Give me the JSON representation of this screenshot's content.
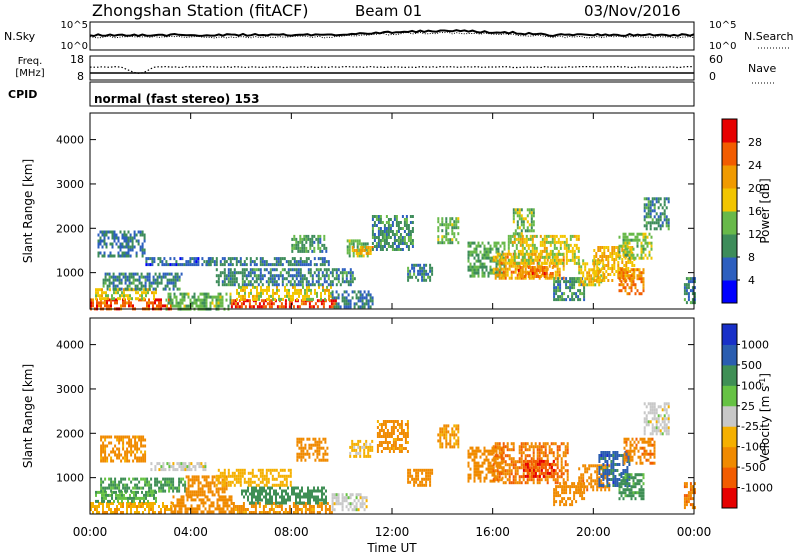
{
  "header": {
    "station": "Zhongshan Station (fitACF)",
    "beam": "Beam 01",
    "date": "03/Nov/2016"
  },
  "summary": {
    "nsky_label": "N.Sky",
    "nsky_ticks": [
      "10^5",
      "10^0"
    ],
    "nsearch_label": "N.Search",
    "nsearch_ticks": [
      "10^5",
      "10^0"
    ],
    "freq_label": [
      "Freq.",
      "[MHz]"
    ],
    "freq_ticks": [
      "18",
      "8"
    ],
    "nave_label": "Nave",
    "nave_ticks": [
      "60",
      "0"
    ],
    "cpid_label": "CPID",
    "cpid_text": "normal (fast stereo) 153"
  },
  "colors": {
    "power": [
      "#0000ff",
      "#2d5fbf",
      "#3d8c5a",
      "#68b94a",
      "#f2c500",
      "#f09a00",
      "#f25c00",
      "#e60000"
    ],
    "velocity": [
      "#e60000",
      "#f25c00",
      "#f08a00",
      "#f5b000",
      "#c8c8c8",
      "#66c244",
      "#3f8f55",
      "#2a5db0",
      "#1830c8"
    ]
  },
  "chart_data": [
    {
      "type": "heatmap",
      "name": "power",
      "ylabel": "Slant Range [km]",
      "ylim": [
        180,
        4600
      ],
      "yticks": [
        "1000",
        "2000",
        "3000",
        "4000"
      ],
      "xlim": [
        0,
        24
      ],
      "colorbar": {
        "label": "Power [dB]",
        "ticks": [
          "4",
          "8",
          "12",
          "16",
          "20",
          "24",
          "28"
        ],
        "range": [
          0,
          32
        ]
      },
      "regions": [
        {
          "t": [
            0.0,
            3.2
          ],
          "r": [
            200,
            420
          ],
          "value": 26
        },
        {
          "t": [
            0.2,
            2.6
          ],
          "r": [
            420,
            650
          ],
          "value": 18
        },
        {
          "t": [
            0.5,
            3.6
          ],
          "r": [
            650,
            1000
          ],
          "value": 9
        },
        {
          "t": [
            0.3,
            2.2
          ],
          "r": [
            1400,
            1950
          ],
          "value": 8
        },
        {
          "t": [
            2.2,
            4.8
          ],
          "r": [
            1150,
            1350
          ],
          "value": 7
        },
        {
          "t": [
            3.0,
            5.6
          ],
          "r": [
            200,
            550
          ],
          "value": 13
        },
        {
          "t": [
            5.6,
            9.8
          ],
          "r": [
            200,
            400
          ],
          "value": 27
        },
        {
          "t": [
            5.8,
            9.6
          ],
          "r": [
            400,
            700
          ],
          "value": 17
        },
        {
          "t": [
            5.0,
            10.5
          ],
          "r": [
            700,
            1100
          ],
          "value": 9
        },
        {
          "t": [
            4.6,
            9.5
          ],
          "r": [
            1150,
            1350
          ],
          "value": 8
        },
        {
          "t": [
            8.0,
            9.4
          ],
          "r": [
            1450,
            1850
          ],
          "value": 11
        },
        {
          "t": [
            9.6,
            11.2
          ],
          "r": [
            250,
            600
          ],
          "value": 8
        },
        {
          "t": [
            10.2,
            11.0
          ],
          "r": [
            1350,
            1750
          ],
          "value": 13
        },
        {
          "t": [
            10.4,
            11.2
          ],
          "r": [
            1450,
            1600
          ],
          "value": 22
        },
        {
          "t": [
            11.2,
            12.8
          ],
          "r": [
            1500,
            2300
          ],
          "value": 10
        },
        {
          "t": [
            12.6,
            13.6
          ],
          "r": [
            800,
            1200
          ],
          "value": 9
        },
        {
          "t": [
            13.8,
            14.6
          ],
          "r": [
            1700,
            2250
          ],
          "value": 13
        },
        {
          "t": [
            15.0,
            16.5
          ],
          "r": [
            900,
            1700
          ],
          "value": 12
        },
        {
          "t": [
            16.0,
            18.8
          ],
          "r": [
            900,
            1450
          ],
          "value": 21
        },
        {
          "t": [
            16.6,
            19.4
          ],
          "r": [
            1200,
            1850
          ],
          "value": 17
        },
        {
          "t": [
            17.0,
            18.4
          ],
          "r": [
            900,
            1150
          ],
          "value": 25
        },
        {
          "t": [
            16.8,
            17.6
          ],
          "r": [
            1900,
            2450
          ],
          "value": 14
        },
        {
          "t": [
            18.4,
            19.6
          ],
          "r": [
            400,
            900
          ],
          "value": 10
        },
        {
          "t": [
            19.4,
            20.4
          ],
          "r": [
            700,
            1300
          ],
          "value": 18
        },
        {
          "t": [
            20.0,
            21.6
          ],
          "r": [
            800,
            1600
          ],
          "value": 20
        },
        {
          "t": [
            21.0,
            22.0
          ],
          "r": [
            500,
            1100
          ],
          "value": 23
        },
        {
          "t": [
            21.0,
            22.3
          ],
          "r": [
            1300,
            1900
          ],
          "value": 15
        },
        {
          "t": [
            22.0,
            23.0
          ],
          "r": [
            2000,
            2700
          ],
          "value": 9
        },
        {
          "t": [
            23.6,
            24.0
          ],
          "r": [
            300,
            900
          ],
          "value": 9
        }
      ]
    },
    {
      "type": "heatmap",
      "name": "velocity",
      "ylabel": "Slant Range [km]",
      "ylim": [
        180,
        4600
      ],
      "yticks": [
        "1000",
        "2000",
        "3000",
        "4000"
      ],
      "xlim": [
        0,
        24
      ],
      "xlabel": "Time UT",
      "xticks": [
        "00:00",
        "04:00",
        "08:00",
        "12:00",
        "16:00",
        "20:00",
        "00:00"
      ],
      "colorbar": {
        "label": "Velocity [m s",
        "label_sup": "-1",
        "label_end": "]",
        "ticks": [
          "-1000",
          "-500",
          "-100",
          "-25",
          "25",
          "100",
          "500",
          "1000"
        ]
      },
      "regions": [
        {
          "t": [
            0.0,
            3.4
          ],
          "r": [
            200,
            450
          ],
          "value": -80
        },
        {
          "t": [
            0.2,
            2.6
          ],
          "r": [
            450,
            700
          ],
          "value": 90
        },
        {
          "t": [
            0.4,
            3.8
          ],
          "r": [
            700,
            1000
          ],
          "value": 120
        },
        {
          "t": [
            0.4,
            2.2
          ],
          "r": [
            1400,
            1950
          ],
          "value": -150
        },
        {
          "t": [
            2.4,
            4.6
          ],
          "r": [
            1150,
            1350
          ],
          "value": 0
        },
        {
          "t": [
            3.2,
            5.6
          ],
          "r": [
            200,
            600
          ],
          "value": -200
        },
        {
          "t": [
            3.8,
            5.4
          ],
          "r": [
            600,
            1050
          ],
          "value": -300
        },
        {
          "t": [
            5.6,
            9.6
          ],
          "r": [
            200,
            450
          ],
          "value": -150
        },
        {
          "t": [
            6.0,
            9.4
          ],
          "r": [
            450,
            800
          ],
          "value": 200
        },
        {
          "t": [
            5.0,
            8.0
          ],
          "r": [
            800,
            1200
          ],
          "value": -60
        },
        {
          "t": [
            8.2,
            9.4
          ],
          "r": [
            1400,
            1900
          ],
          "value": -300
        },
        {
          "t": [
            9.6,
            11.0
          ],
          "r": [
            250,
            650
          ],
          "value": 0
        },
        {
          "t": [
            10.3,
            11.2
          ],
          "r": [
            1450,
            1850
          ],
          "value": -40
        },
        {
          "t": [
            11.4,
            12.6
          ],
          "r": [
            1600,
            2300
          ],
          "value": -150
        },
        {
          "t": [
            12.6,
            13.6
          ],
          "r": [
            800,
            1200
          ],
          "value": -250
        },
        {
          "t": [
            13.8,
            14.6
          ],
          "r": [
            1700,
            2200
          ],
          "value": -120
        },
        {
          "t": [
            15.0,
            16.4
          ],
          "r": [
            900,
            1700
          ],
          "value": -300
        },
        {
          "t": [
            16.0,
            19.0
          ],
          "r": [
            900,
            1800
          ],
          "value": -450
        },
        {
          "t": [
            17.2,
            18.4
          ],
          "r": [
            1000,
            1400
          ],
          "value": -900
        },
        {
          "t": [
            18.4,
            19.6
          ],
          "r": [
            400,
            900
          ],
          "value": -200
        },
        {
          "t": [
            19.4,
            20.6
          ],
          "r": [
            700,
            1300
          ],
          "value": -350
        },
        {
          "t": [
            20.2,
            21.4
          ],
          "r": [
            800,
            1600
          ],
          "value": 700
        },
        {
          "t": [
            21.0,
            22.0
          ],
          "r": [
            500,
            1100
          ],
          "value": 150
        },
        {
          "t": [
            21.2,
            22.4
          ],
          "r": [
            1300,
            1900
          ],
          "value": -400
        },
        {
          "t": [
            22.0,
            23.0
          ],
          "r": [
            2000,
            2700
          ],
          "value": 0
        },
        {
          "t": [
            23.6,
            24.0
          ],
          "r": [
            300,
            900
          ],
          "value": -400
        }
      ]
    }
  ]
}
